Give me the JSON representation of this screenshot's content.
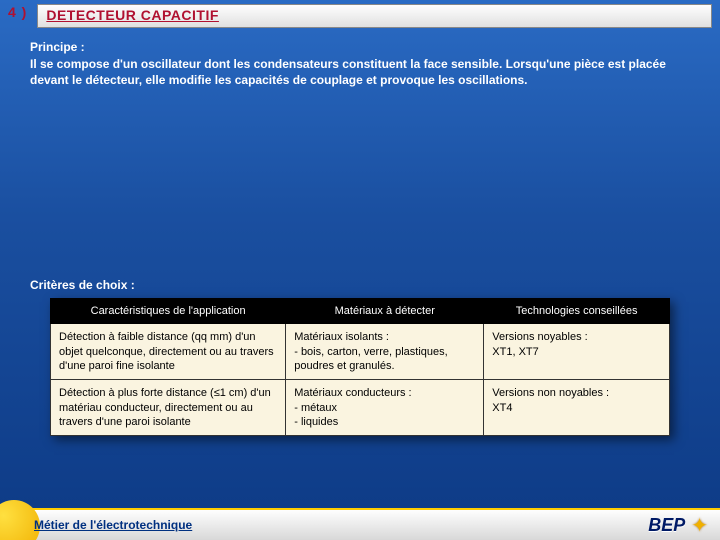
{
  "section_number": "4 )",
  "title": "DETECTEUR CAPACITIF",
  "principe": {
    "label": "Principe :",
    "text": "Il se compose d'un oscillateur dont les condensateurs constituent la face sensible. Lorsqu'une pièce est placée devant le détecteur, elle modifie les capacités de couplage et provoque les oscillations."
  },
  "criteres_label": "Critères de choix :",
  "table": {
    "columns": [
      "Caractéristiques de l'application",
      "Matériaux à détecter",
      "Technologies conseillées"
    ],
    "rows": [
      [
        "Détection à faible distance (qq mm) d'un objet quelconque, directement ou au travers d'une paroi fine isolante",
        "Matériaux isolants :\n- bois, carton, verre, plastiques, poudres et granulés.",
        "Versions noyables :\nXT1, XT7"
      ],
      [
        "Détection à plus forte distance (≤1 cm) d'un matériau conducteur, directement ou au travers d'une paroi isolante",
        "Matériaux conducteurs :\n- métaux\n- liquides",
        "Versions non noyables :\nXT4"
      ]
    ],
    "col_widths": [
      "38%",
      "32%",
      "30%"
    ],
    "header_bg": "#000000",
    "header_fg": "#ffffff",
    "cell_bg": "#faf4e0",
    "border_color": "#333333",
    "fontsize": 11
  },
  "footer": {
    "left": "Métier de l'électrotechnique",
    "right": "BEP"
  },
  "colors": {
    "bg_top": "#2a6bc4",
    "bg_bottom": "#0d3a85",
    "title_text": "#b01030",
    "body_text": "#ffffff",
    "footer_text": "#003080",
    "accent": "#f0b000"
  }
}
